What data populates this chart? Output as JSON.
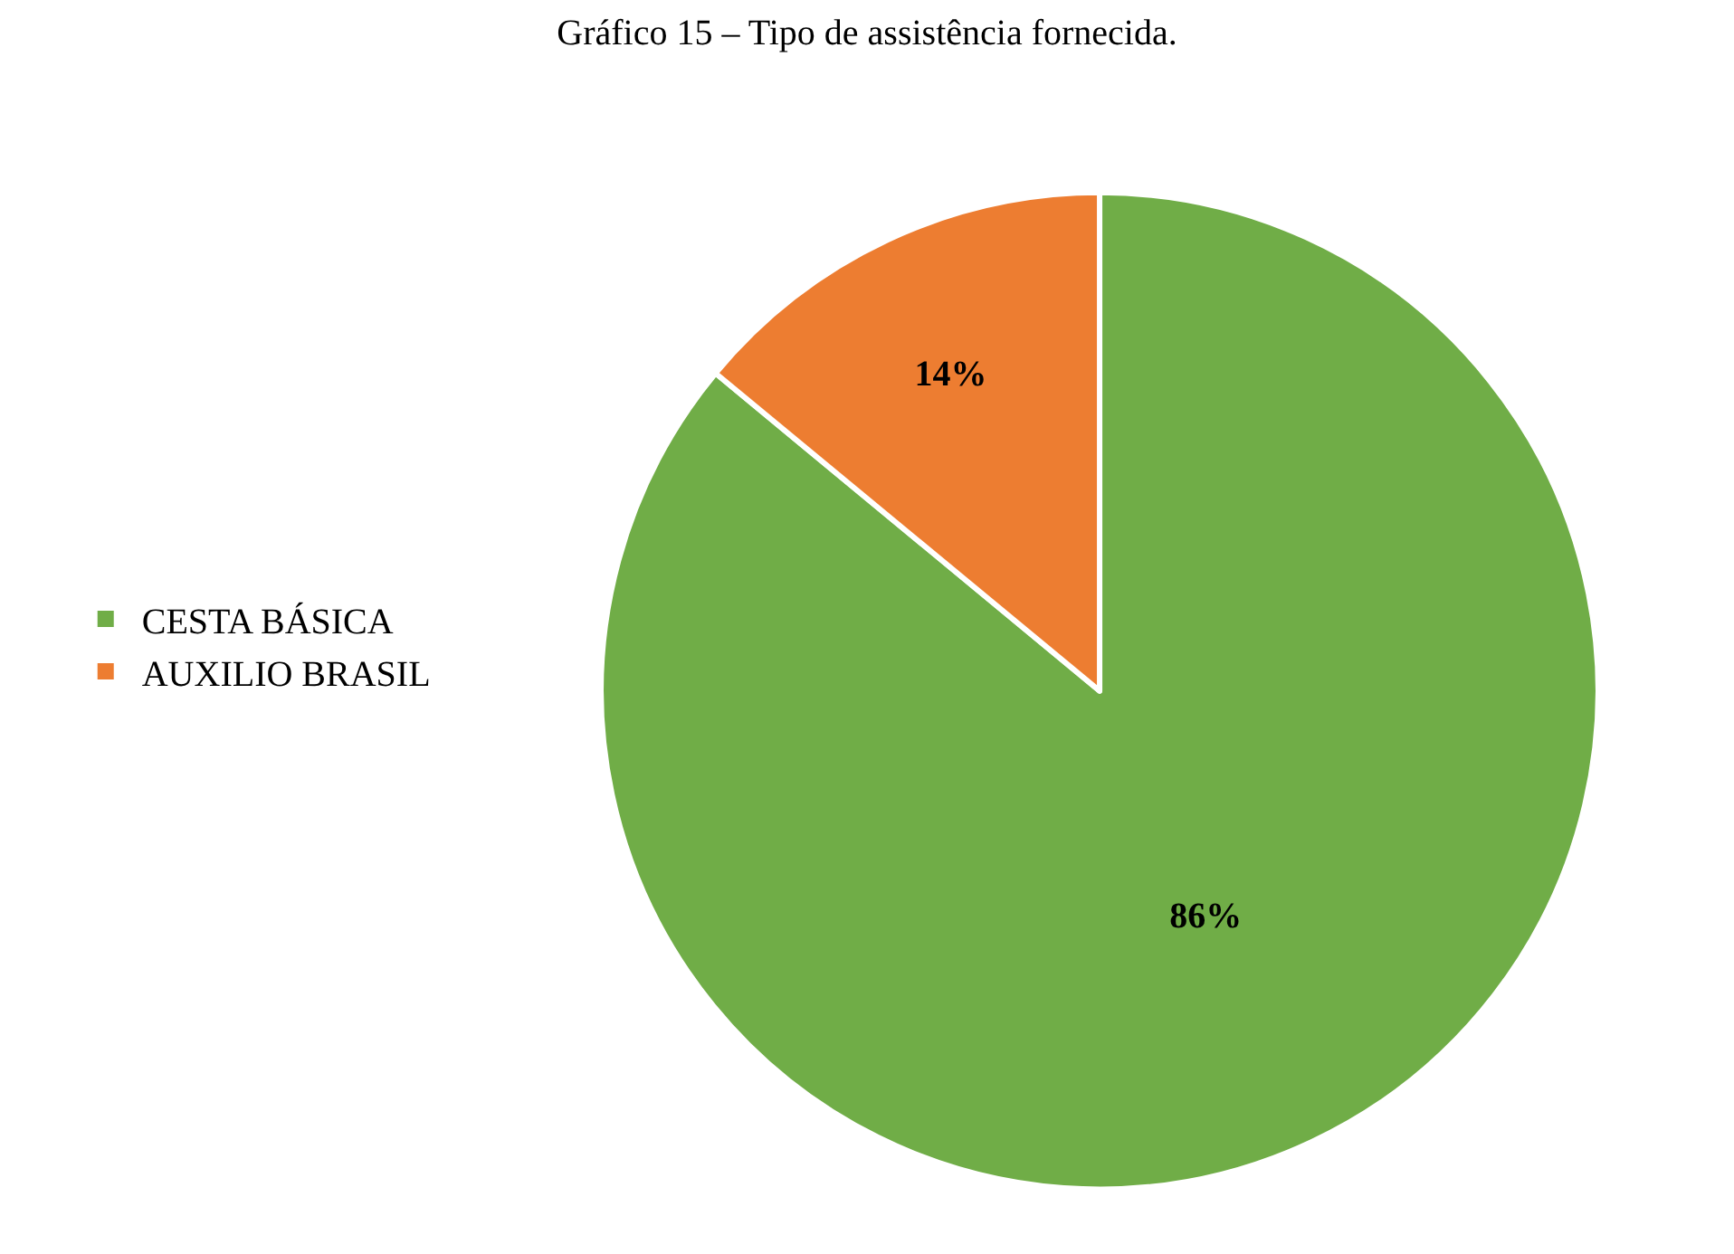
{
  "chart_data": {
    "type": "pie",
    "title": "Gráfico 15 – Tipo de assistência fornecida.",
    "categories": [
      "CESTA BÁSICA",
      "AUXILIO BRASIL"
    ],
    "values": [
      86,
      14
    ],
    "colors": [
      "#70ad47",
      "#ed7d31"
    ],
    "value_labels": [
      "86%",
      "14%"
    ],
    "legend": "left"
  }
}
